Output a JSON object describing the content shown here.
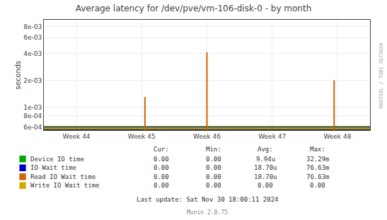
{
  "chart_data": {
    "type": "line",
    "title": "Average latency for /dev/pve/vm-106-disk-0 - by month",
    "y_label": "seconds",
    "log": "y",
    "grid": true,
    "xlim": [
      -0.5,
      4.5
    ],
    "xticks": [
      {
        "value": 0,
        "label": "Week 44"
      },
      {
        "value": 1,
        "label": "Week 45"
      },
      {
        "value": 2,
        "label": "Week 46"
      },
      {
        "value": 3,
        "label": "Week 47"
      },
      {
        "value": 4,
        "label": "Week 48"
      }
    ],
    "ylim": [
      0.00055,
      0.0095
    ],
    "yticks": [
      {
        "value": 0.0006,
        "label": "6e-04"
      },
      {
        "value": 0.0008,
        "label": "8e-04"
      },
      {
        "value": 0.001,
        "label": "1e-03"
      },
      {
        "value": 0.002,
        "label": "2e-03"
      },
      {
        "value": 0.004,
        "label": "4e-03"
      },
      {
        "value": 0.006,
        "label": "6e-03"
      },
      {
        "value": 0.008,
        "label": "8e-03"
      }
    ],
    "legend_headers": [
      "Cur:",
      "Min:",
      "Avg:",
      "Max:"
    ],
    "series": [
      {
        "name": "Device IO time",
        "color": "#00aa00",
        "x": [
          -0.5,
          4.5
        ],
        "values": [
          0.00058,
          0.00058
        ],
        "legend_values": [
          "0.00",
          "0.00",
          "9.94u",
          "32.29m"
        ]
      },
      {
        "name": "IO Wait time",
        "color": "#0000cc",
        "x": [
          -0.5,
          4.5
        ],
        "values": [
          0.00058,
          0.00058
        ],
        "legend_values": [
          "0.00",
          "0.00",
          "18.70u",
          "76.63m"
        ]
      },
      {
        "name": "Read IO Wait time",
        "color": "#cc6600",
        "x": [
          -0.5,
          4.5
        ],
        "values": [
          0.00058,
          0.00058
        ],
        "legend_values": [
          "0.00",
          "0.00",
          "18.70u",
          "76.63m"
        ],
        "spikes": [
          {
            "x": 1.05,
            "y_bottom": 0.00055,
            "y_top": 0.0013
          },
          {
            "x": 2.0,
            "y_bottom": 0.00055,
            "y_top": 0.0041
          },
          {
            "x": 3.95,
            "y_bottom": 0.00055,
            "y_top": 0.002
          }
        ]
      },
      {
        "name": "Write IO Wait time",
        "color": "#ccaa00",
        "x": [
          -0.5,
          4.5
        ],
        "values": [
          0.00058,
          0.00058
        ],
        "legend_values": [
          "0.00",
          "0.00",
          "0.00",
          "0.00"
        ]
      }
    ],
    "annotations": [
      "Last update: Sat Nov 30 18:00:11 2024",
      "Munin 2.0.75",
      "RRDTOOL / TOBI OETIKER"
    ]
  }
}
